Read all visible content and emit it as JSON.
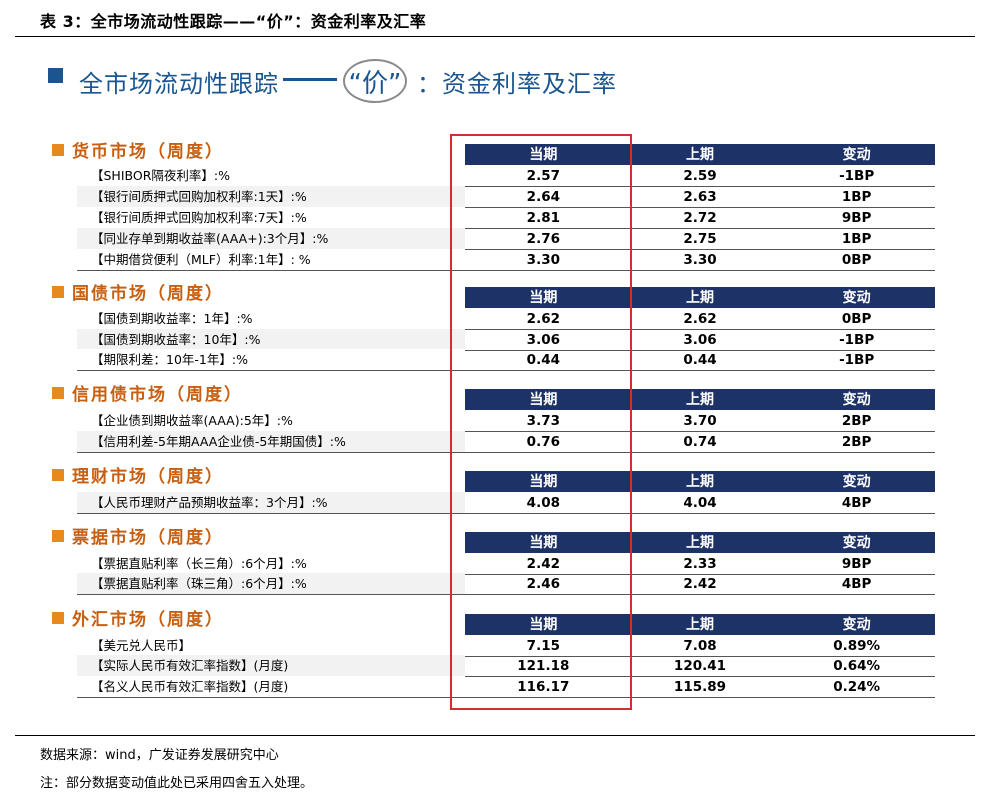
{
  "caption": "表 3：全市场流动性跟踪——“价”：资金利率及汇率",
  "main_title": {
    "part1": "全市场流动性跟踪",
    "circled": "“价”",
    "part2": "：资金利率及汇率"
  },
  "colors": {
    "navy_header": "#1d3266",
    "title_blue": "#1a5590",
    "section_orange": "#c85f10",
    "highlight_red": "#d42d2d"
  },
  "columns": [
    "当期",
    "上期",
    "变动"
  ],
  "sections": [
    {
      "title": "货币市场（周度）",
      "rows": [
        {
          "label": "【SHIBOR隔夜利率】:%",
          "current": "2.57",
          "previous": "2.59",
          "change": "-1BP"
        },
        {
          "label": "【银行间质押式回购加权利率:1天】:%",
          "current": "2.64",
          "previous": "2.63",
          "change": "1BP"
        },
        {
          "label": "【银行间质押式回购加权利率:7天】:%",
          "current": "2.81",
          "previous": "2.72",
          "change": "9BP"
        },
        {
          "label": "【同业存单到期收益率(AAA+):3个月】:%",
          "current": "2.76",
          "previous": "2.75",
          "change": "1BP"
        },
        {
          "label": "【中期借贷便利（MLF）利率:1年】: %",
          "current": "3.30",
          "previous": "3.30",
          "change": "0BP"
        }
      ]
    },
    {
      "title": "国债市场（周度）",
      "rows": [
        {
          "label": "【国债到期收益率：1年】:%",
          "current": "2.62",
          "previous": "2.62",
          "change": "0BP"
        },
        {
          "label": "【国债到期收益率：10年】:%",
          "current": "3.06",
          "previous": "3.06",
          "change": "-1BP"
        },
        {
          "label": "【期限利差：10年-1年】:%",
          "current": "0.44",
          "previous": "0.44",
          "change": "-1BP"
        }
      ]
    },
    {
      "title": "信用债市场（周度）",
      "rows": [
        {
          "label": "【企业债到期收益率(AAA):5年】:%",
          "current": "3.73",
          "previous": "3.70",
          "change": "2BP"
        },
        {
          "label": "【信用利差-5年期AAA企业债-5年期国债】:%",
          "current": "0.76",
          "previous": "0.74",
          "change": "2BP"
        }
      ]
    },
    {
      "title": "理财市场（周度）",
      "rows": [
        {
          "label": "【人民币理财产品预期收益率：3个月】:%",
          "current": "4.08",
          "previous": "4.04",
          "change": "4BP"
        }
      ]
    },
    {
      "title": "票据市场（周度）",
      "rows": [
        {
          "label": "【票据直贴利率（长三角）:6个月】:%",
          "current": "2.42",
          "previous": "2.33",
          "change": "9BP"
        },
        {
          "label": "【票据直贴利率（珠三角）:6个月】:%",
          "current": "2.46",
          "previous": "2.42",
          "change": "4BP"
        }
      ]
    },
    {
      "title": "外汇市场（周度）",
      "rows": [
        {
          "label": "【美元兑人民币】",
          "current": "7.15",
          "previous": "7.08",
          "change": "0.89%"
        },
        {
          "label": "【实际人民币有效汇率指数】(月度)",
          "current": "121.18",
          "previous": "120.41",
          "change": "0.64%"
        },
        {
          "label": "【名义人民币有效汇率指数】(月度)",
          "current": "116.17",
          "previous": "115.89",
          "change": "0.24%"
        }
      ]
    }
  ],
  "footer": {
    "source": "数据来源：wind，广发证券发展研究中心",
    "note": "注：部分数据变动值此处已采用四舍五入处理。"
  }
}
